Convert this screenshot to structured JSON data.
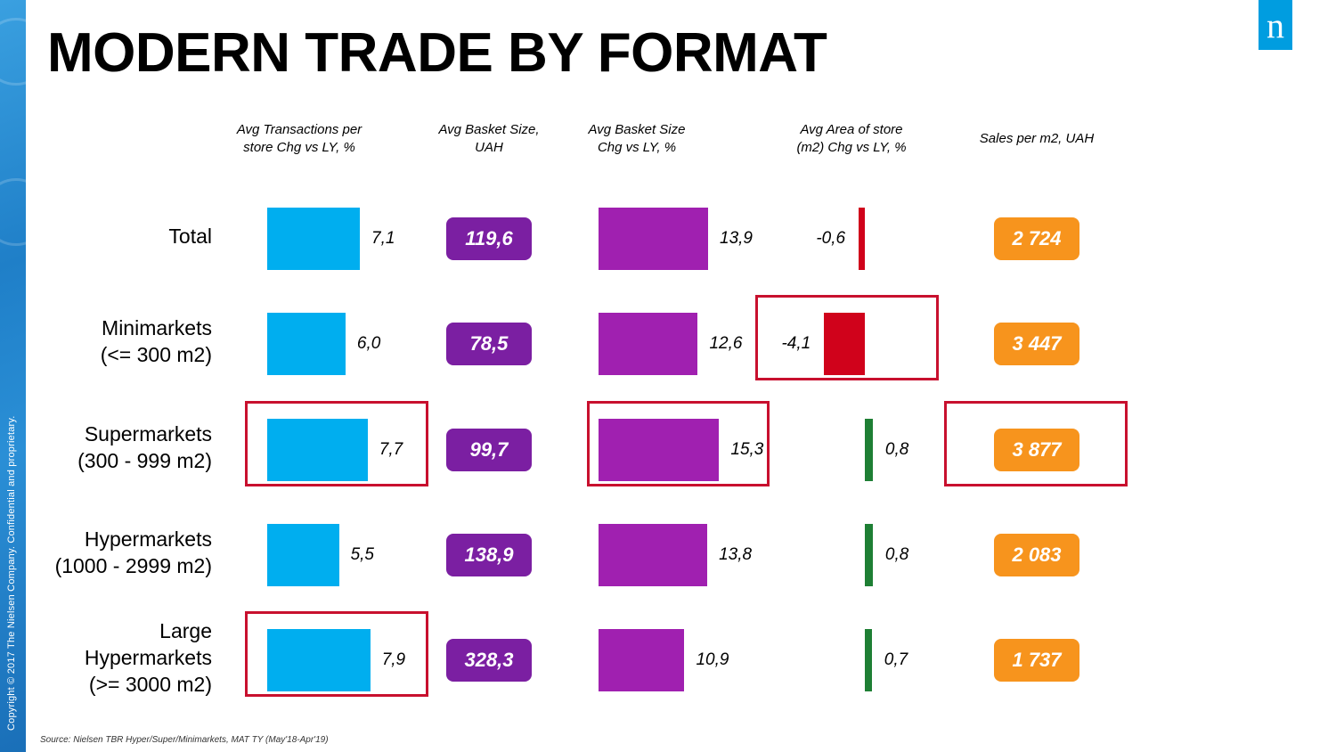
{
  "title": "MODERN TRADE BY FORMAT",
  "copyright": "Copyright © 2017 The Nielsen Company. Confidential and proprietary.",
  "logo_text": "n",
  "source": "Source: Nielsen TBR Hyper/Super/Minimarkets, MAT TY (May'18-Apr'19)",
  "colors": {
    "transactions_bar": "#00aeef",
    "basket_pill": "#7b1fa2",
    "basket_chg_bar": "#a020b0",
    "area_negative": "#d0021b",
    "area_positive": "#1e7f34",
    "sales_pill": "#f7941d",
    "highlight": "#c8102e"
  },
  "chart_data": {
    "type": "table",
    "columns": [
      {
        "key": "transactions_chg",
        "header": "Avg Transactions per\nstore Chg vs LY, %",
        "display": "bar"
      },
      {
        "key": "basket_size",
        "header": "Avg Basket Size,\nUAH",
        "display": "pill"
      },
      {
        "key": "basket_chg",
        "header": "Avg Basket Size\nChg vs LY, %",
        "display": "bar"
      },
      {
        "key": "area_chg",
        "header": "Avg Area of store\n(m2) Chg vs LY, %",
        "display": "bar"
      },
      {
        "key": "sales_per_m2",
        "header": "Sales per m2, UAH",
        "display": "pill"
      }
    ],
    "rows": [
      {
        "label": "Total",
        "transactions_chg": 7.1,
        "transactions_chg_text": "7,1",
        "basket_size_text": "119,6",
        "basket_chg": 13.9,
        "basket_chg_text": "13,9",
        "area_chg": -0.6,
        "area_chg_text": "-0,6",
        "sales_per_m2_text": "2 724",
        "highlight": []
      },
      {
        "label": "Minimarkets\n(<= 300 m2)",
        "transactions_chg": 6.0,
        "transactions_chg_text": "6,0",
        "basket_size_text": "78,5",
        "basket_chg": 12.6,
        "basket_chg_text": "12,6",
        "area_chg": -4.1,
        "area_chg_text": "-4,1",
        "sales_per_m2_text": "3 447",
        "highlight": [
          "area_chg"
        ]
      },
      {
        "label": "Supermarkets\n(300 - 999 m2)",
        "transactions_chg": 7.7,
        "transactions_chg_text": "7,7",
        "basket_size_text": "99,7",
        "basket_chg": 15.3,
        "basket_chg_text": "15,3",
        "area_chg": 0.8,
        "area_chg_text": "0,8",
        "sales_per_m2_text": "3 877",
        "highlight": [
          "transactions_chg",
          "basket_chg",
          "sales_per_m2"
        ]
      },
      {
        "label": "Hypermarkets\n(1000 - 2999 m2)",
        "transactions_chg": 5.5,
        "transactions_chg_text": "5,5",
        "basket_size_text": "138,9",
        "basket_chg": 13.8,
        "basket_chg_text": "13,8",
        "area_chg": 0.8,
        "area_chg_text": "0,8",
        "sales_per_m2_text": "2 083",
        "highlight": []
      },
      {
        "label": "Large\nHypermarkets\n(>= 3000 m2)",
        "transactions_chg": 7.9,
        "transactions_chg_text": "7,9",
        "basket_size_text": "328,3",
        "basket_chg": 10.9,
        "basket_chg_text": "10,9",
        "area_chg": 0.7,
        "area_chg_text": "0,7",
        "sales_per_m2_text": "1 737",
        "highlight": [
          "transactions_chg"
        ]
      }
    ]
  }
}
